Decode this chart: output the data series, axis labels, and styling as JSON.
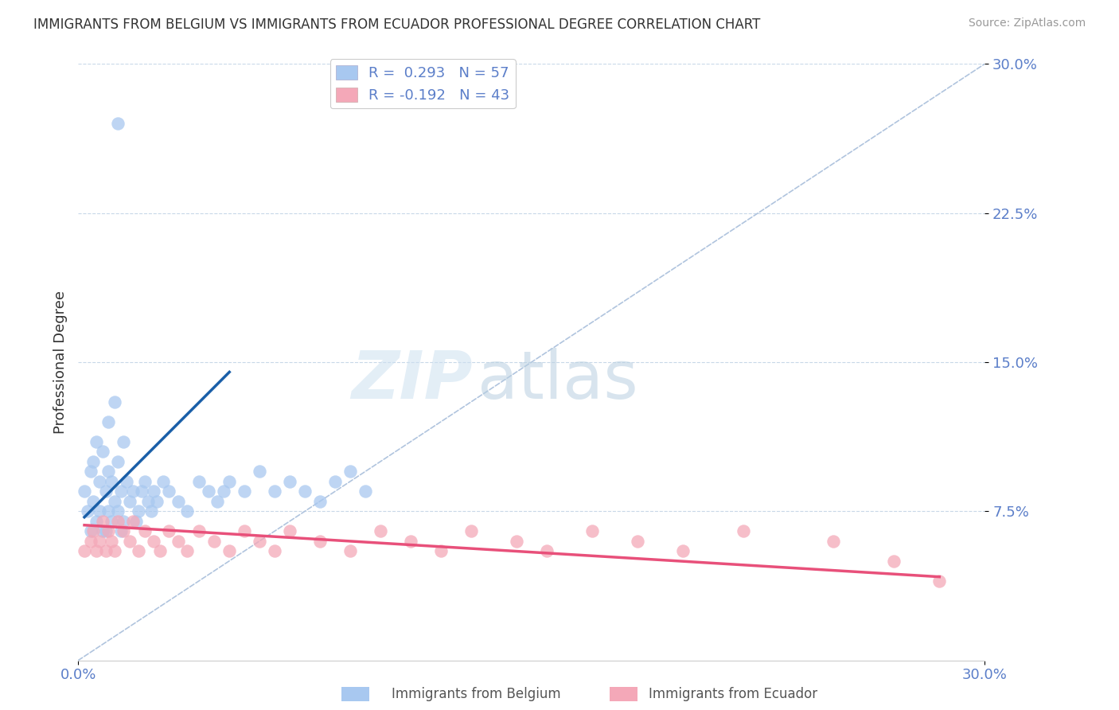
{
  "title": "IMMIGRANTS FROM BELGIUM VS IMMIGRANTS FROM ECUADOR PROFESSIONAL DEGREE CORRELATION CHART",
  "source": "Source: ZipAtlas.com",
  "ylabel": "Professional Degree",
  "xlim": [
    0.0,
    0.3
  ],
  "ylim": [
    0.0,
    0.3
  ],
  "ytick_labels": [
    "7.5%",
    "15.0%",
    "22.5%",
    "30.0%"
  ],
  "yticks": [
    0.075,
    0.15,
    0.225,
    0.3
  ],
  "xtick_labels": [
    "0.0%",
    "30.0%"
  ],
  "xticks": [
    0.0,
    0.3
  ],
  "legend_label1": "R =  0.293   N = 57",
  "legend_label2": "R = -0.192   N = 43",
  "color_belgium": "#a8c8f0",
  "color_ecuador": "#f4a8b8",
  "line_color_belgium": "#1a5fa8",
  "line_color_ecuador": "#e8507a",
  "diagonal_color": "#b0c4de",
  "tick_label_color": "#5b7ec9",
  "belgium_x": [
    0.002,
    0.003,
    0.004,
    0.004,
    0.005,
    0.005,
    0.006,
    0.006,
    0.007,
    0.007,
    0.008,
    0.008,
    0.009,
    0.009,
    0.01,
    0.01,
    0.01,
    0.011,
    0.011,
    0.012,
    0.012,
    0.013,
    0.013,
    0.014,
    0.014,
    0.015,
    0.015,
    0.016,
    0.017,
    0.018,
    0.019,
    0.02,
    0.021,
    0.022,
    0.023,
    0.024,
    0.025,
    0.026,
    0.028,
    0.03,
    0.033,
    0.036,
    0.04,
    0.043,
    0.046,
    0.048,
    0.05,
    0.055,
    0.06,
    0.065,
    0.07,
    0.075,
    0.08,
    0.085,
    0.09,
    0.095,
    0.013
  ],
  "belgium_y": [
    0.085,
    0.075,
    0.095,
    0.065,
    0.1,
    0.08,
    0.11,
    0.07,
    0.09,
    0.075,
    0.105,
    0.065,
    0.085,
    0.065,
    0.12,
    0.095,
    0.075,
    0.09,
    0.07,
    0.13,
    0.08,
    0.1,
    0.075,
    0.085,
    0.065,
    0.11,
    0.07,
    0.09,
    0.08,
    0.085,
    0.07,
    0.075,
    0.085,
    0.09,
    0.08,
    0.075,
    0.085,
    0.08,
    0.09,
    0.085,
    0.08,
    0.075,
    0.09,
    0.085,
    0.08,
    0.085,
    0.09,
    0.085,
    0.095,
    0.085,
    0.09,
    0.085,
    0.08,
    0.09,
    0.095,
    0.085,
    0.27
  ],
  "ecuador_x": [
    0.002,
    0.004,
    0.005,
    0.006,
    0.007,
    0.008,
    0.009,
    0.01,
    0.011,
    0.012,
    0.013,
    0.015,
    0.017,
    0.018,
    0.02,
    0.022,
    0.025,
    0.027,
    0.03,
    0.033,
    0.036,
    0.04,
    0.045,
    0.05,
    0.055,
    0.06,
    0.065,
    0.07,
    0.08,
    0.09,
    0.1,
    0.11,
    0.12,
    0.13,
    0.145,
    0.155,
    0.17,
    0.185,
    0.2,
    0.22,
    0.25,
    0.27,
    0.285
  ],
  "ecuador_y": [
    0.055,
    0.06,
    0.065,
    0.055,
    0.06,
    0.07,
    0.055,
    0.065,
    0.06,
    0.055,
    0.07,
    0.065,
    0.06,
    0.07,
    0.055,
    0.065,
    0.06,
    0.055,
    0.065,
    0.06,
    0.055,
    0.065,
    0.06,
    0.055,
    0.065,
    0.06,
    0.055,
    0.065,
    0.06,
    0.055,
    0.065,
    0.06,
    0.055,
    0.065,
    0.06,
    0.055,
    0.065,
    0.06,
    0.055,
    0.065,
    0.06,
    0.05,
    0.04
  ],
  "belgium_line_x": [
    0.002,
    0.05
  ],
  "belgium_line_y": [
    0.072,
    0.145
  ],
  "ecuador_line_x": [
    0.002,
    0.285
  ],
  "ecuador_line_y": [
    0.068,
    0.042
  ]
}
